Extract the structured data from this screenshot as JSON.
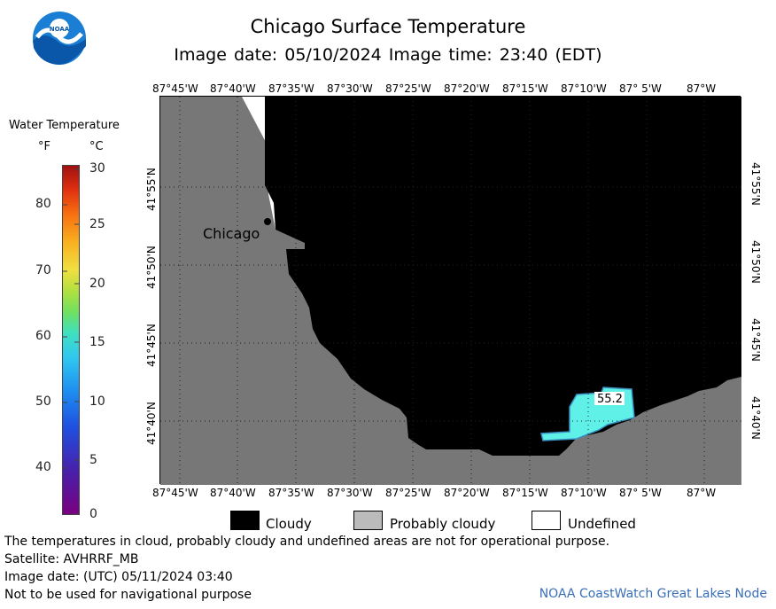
{
  "header": {
    "title": "Chicago Surface Temperature",
    "subtitle": "Image date: 05/10/2024    Image time: 23:40 (EDT)"
  },
  "logo": {
    "text": "NOAA",
    "icon": "noaa-logo-icon"
  },
  "colorbar": {
    "title": "Water Temperature",
    "unit_f": "°F",
    "unit_c": "°C",
    "f_ticks": [
      "80",
      "70",
      "60",
      "50",
      "40"
    ],
    "c_ticks": [
      "30",
      "25",
      "20",
      "15",
      "10",
      "5",
      "0"
    ],
    "colors": [
      "#7a0080",
      "#4a1ea8",
      "#1f4fe0",
      "#1e8cf0",
      "#30c8f0",
      "#40e0c0",
      "#70e060",
      "#b0e040",
      "#f0e040",
      "#f8b020",
      "#f87010",
      "#e03010",
      "#a01010"
    ]
  },
  "map": {
    "lon_labels": [
      "87°45'W",
      "87°40'W",
      "87°35'W",
      "87°30'W",
      "87°25'W",
      "87°20'W",
      "87°15'W",
      "87°10'W",
      "87° 5'W",
      "87°W"
    ],
    "lat_labels": [
      "41°55'N",
      "41°50'N",
      "41°45'N",
      "41°40'N"
    ],
    "city_label": "Chicago",
    "temperature_label": "55.2",
    "colors": {
      "land": "#777777",
      "cloud": "#000000",
      "undefined": "#ffffff",
      "water_temp": "#5ff0e8"
    }
  },
  "legend": {
    "cloudy": "Cloudy",
    "probably_cloudy": "Probably cloudy",
    "undefined": "Undefined"
  },
  "footer": {
    "note": "The temperatures in cloud, probably cloudy and undefined areas are not for operational purpose.",
    "satellite": "Satellite: AVHRRF_MB",
    "utc_date": "Image date: (UTC) 05/11/2024  03:40",
    "navigation": "Not to be used for navigational purpose",
    "node": "NOAA CoastWatch Great Lakes Node"
  }
}
